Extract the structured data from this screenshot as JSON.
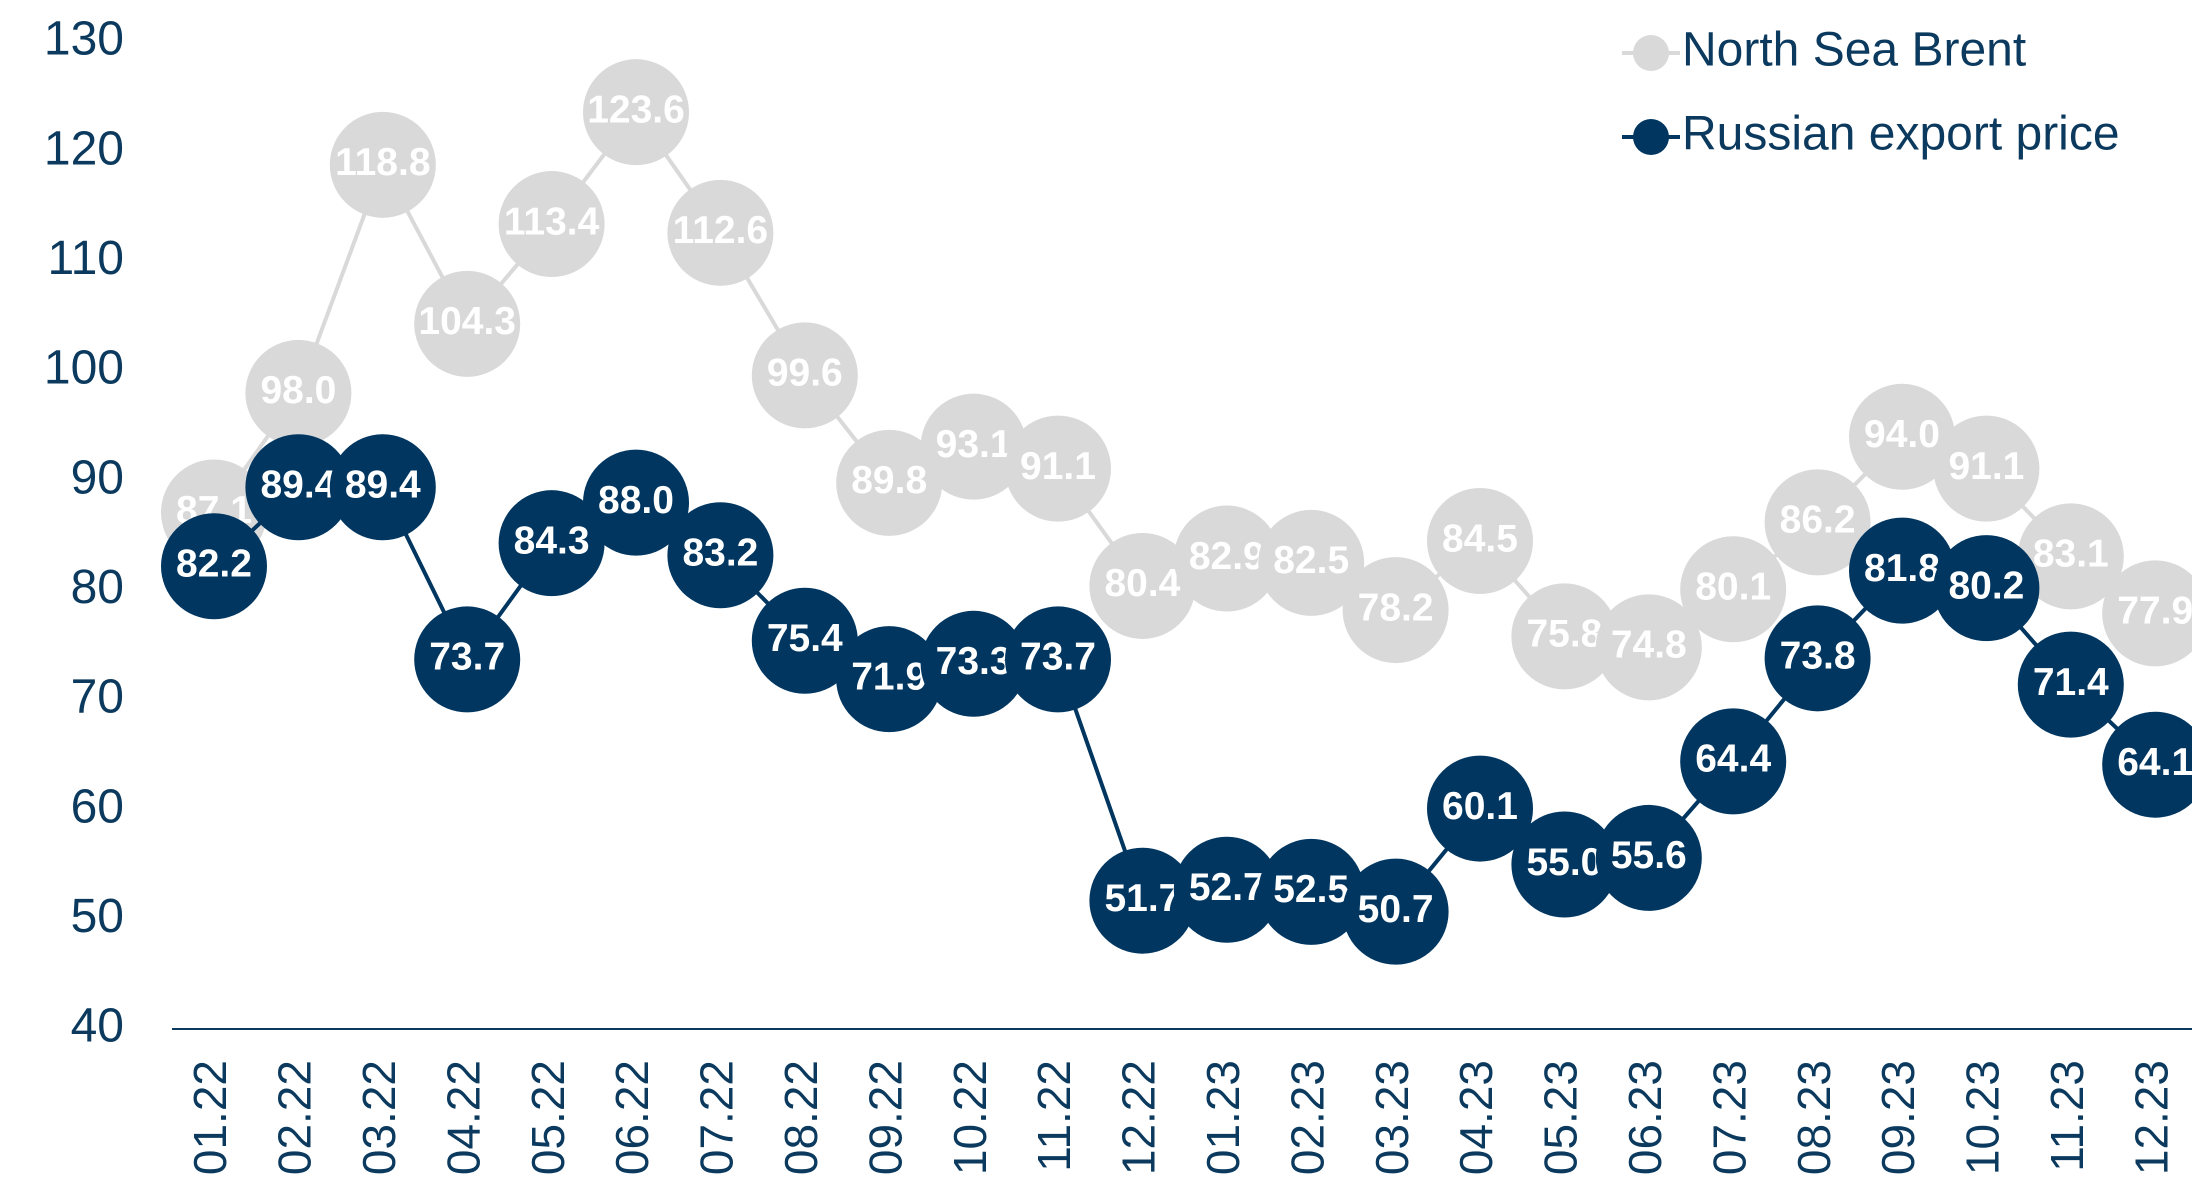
{
  "chart_data": {
    "type": "line",
    "categories": [
      "01.22",
      "02.22",
      "03.22",
      "04.22",
      "05.22",
      "06.22",
      "07.22",
      "08.22",
      "09.22",
      "10.22",
      "11.22",
      "12.22",
      "01.23",
      "02.23",
      "03.23",
      "04.23",
      "05.23",
      "06.23",
      "07.23",
      "08.23",
      "09.23",
      "10.23",
      "11.23",
      "12.23"
    ],
    "series": [
      {
        "name": "North Sea Brent",
        "color": "#d9d9d9",
        "values": [
          87.1,
          98.0,
          118.8,
          104.3,
          113.4,
          123.6,
          112.6,
          99.6,
          89.8,
          93.1,
          91.1,
          80.4,
          82.9,
          82.5,
          78.2,
          84.5,
          75.8,
          74.8,
          80.1,
          86.2,
          94.0,
          91.1,
          83.1,
          77.9
        ],
        "value_labels": [
          "87.1",
          "98.0",
          "118.8",
          "104.3",
          "113.4",
          "123.6",
          "112.6",
          "99.6",
          "89.8",
          "93.1",
          "91.1",
          "80.4",
          "82.9",
          "82.5",
          "78.2",
          "84.5",
          "75.8",
          "74.8",
          "80.1",
          "86.2",
          "94.0",
          "91.1",
          "83.1",
          "77.9"
        ]
      },
      {
        "name": "Russian export price",
        "color": "#003660",
        "values": [
          82.2,
          89.4,
          89.4,
          73.7,
          84.3,
          88.0,
          83.2,
          75.4,
          71.9,
          73.3,
          73.7,
          51.7,
          52.7,
          52.5,
          50.7,
          60.1,
          55.0,
          55.6,
          64.4,
          73.8,
          81.8,
          80.2,
          71.4,
          64.1
        ],
        "value_labels": [
          "82.2",
          "89.4",
          "89.4",
          "73.7",
          "84.3",
          "88.0",
          "83.2",
          "75.4",
          "71.9",
          "73.3",
          "73.7",
          "51.7",
          "52.7",
          "52.5",
          "50.7",
          "60.1",
          "55.0",
          "55.6",
          "64.4",
          "73.8",
          "81.8",
          "80.2",
          "71.4",
          "64.1"
        ]
      }
    ],
    "ylim": [
      40,
      130
    ],
    "yticks": [
      40,
      50,
      60,
      70,
      80,
      90,
      100,
      110,
      120,
      130
    ],
    "legend": "upper right"
  }
}
